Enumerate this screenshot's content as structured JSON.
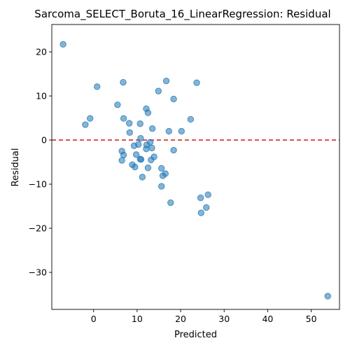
{
  "chart_data": {
    "type": "scatter",
    "title": "Sarcoma_SELECT_Boruta_16_LinearRegression: Residual",
    "xlabel": "Predicted",
    "ylabel": "Residual",
    "xlim": [
      -9.6,
      56.5
    ],
    "ylim": [
      -38.4,
      26.2
    ],
    "xticks": [
      0,
      10,
      20,
      30,
      40,
      50
    ],
    "yticks": [
      -30,
      -20,
      -10,
      0,
      10,
      20
    ],
    "reference_line": {
      "y": 0,
      "color": "#d62728",
      "style": "dashed"
    },
    "point_color": "#1f77b4",
    "points": [
      {
        "x": -7.0,
        "y": 21.7
      },
      {
        "x": 0.8,
        "y": 12.1
      },
      {
        "x": 6.8,
        "y": 13.1
      },
      {
        "x": 16.7,
        "y": 13.4
      },
      {
        "x": 23.7,
        "y": 13.0
      },
      {
        "x": 14.9,
        "y": 11.1
      },
      {
        "x": 18.4,
        "y": 9.3
      },
      {
        "x": 5.5,
        "y": 8.0
      },
      {
        "x": 12.1,
        "y": 7.1
      },
      {
        "x": 12.5,
        "y": 6.2
      },
      {
        "x": -0.8,
        "y": 4.9
      },
      {
        "x": 6.9,
        "y": 4.9
      },
      {
        "x": 22.3,
        "y": 4.7
      },
      {
        "x": -1.9,
        "y": 3.5
      },
      {
        "x": 8.2,
        "y": 3.8
      },
      {
        "x": 10.7,
        "y": 3.7
      },
      {
        "x": 13.5,
        "y": 2.6
      },
      {
        "x": 8.3,
        "y": 1.7
      },
      {
        "x": 17.3,
        "y": 2.0
      },
      {
        "x": 20.2,
        "y": 2.0
      },
      {
        "x": 10.8,
        "y": 0.4
      },
      {
        "x": 13.0,
        "y": -0.5
      },
      {
        "x": 10.3,
        "y": -1.0
      },
      {
        "x": 9.3,
        "y": -1.3
      },
      {
        "x": 12.2,
        "y": -1.1
      },
      {
        "x": 12.1,
        "y": -2.0
      },
      {
        "x": 13.4,
        "y": -1.8
      },
      {
        "x": 18.4,
        "y": -2.3
      },
      {
        "x": 6.5,
        "y": -2.5
      },
      {
        "x": 6.9,
        "y": -3.4
      },
      {
        "x": 9.8,
        "y": -3.3
      },
      {
        "x": 13.9,
        "y": -3.8
      },
      {
        "x": 10.7,
        "y": -4.3
      },
      {
        "x": 10.9,
        "y": -4.4
      },
      {
        "x": 13.2,
        "y": -4.5
      },
      {
        "x": 6.5,
        "y": -4.6
      },
      {
        "x": 8.9,
        "y": -5.6
      },
      {
        "x": 9.5,
        "y": -6.1
      },
      {
        "x": 12.5,
        "y": -6.3
      },
      {
        "x": 15.6,
        "y": -6.4
      },
      {
        "x": 16.5,
        "y": -7.6
      },
      {
        "x": 15.9,
        "y": -8.1
      },
      {
        "x": 11.2,
        "y": -8.4
      },
      {
        "x": 15.6,
        "y": -10.5
      },
      {
        "x": 26.3,
        "y": -12.4
      },
      {
        "x": 24.6,
        "y": -13.1
      },
      {
        "x": 17.7,
        "y": -14.2
      },
      {
        "x": 25.9,
        "y": -15.3
      },
      {
        "x": 24.7,
        "y": -16.5
      },
      {
        "x": 53.8,
        "y": -35.4
      }
    ]
  }
}
